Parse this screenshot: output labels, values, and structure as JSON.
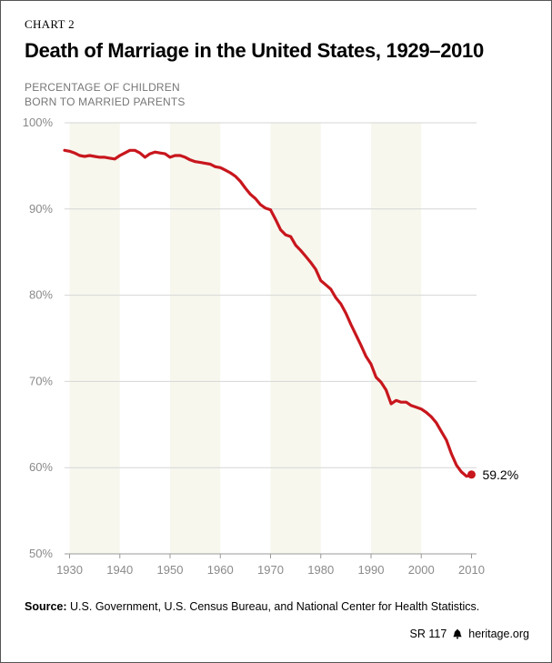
{
  "header": {
    "kicker": "CHART 2",
    "title": "Death of Marriage in the United States, 1929–2010",
    "ylabel_line1": "PERCENTAGE OF CHILDREN",
    "ylabel_line2": "BORN TO MARRIED PARENTS"
  },
  "chart_data": {
    "type": "line",
    "title": "Death of Marriage in the United States, 1929–2010",
    "xlabel": "",
    "ylabel": "PERCENTAGE OF CHILDREN BORN TO MARRIED PARENTS",
    "xlim": [
      1929,
      2011
    ],
    "ylim": [
      50,
      100
    ],
    "x_ticks": [
      1930,
      1940,
      1950,
      1960,
      1970,
      1980,
      1990,
      2000,
      2010
    ],
    "x_tick_labels": [
      "1930",
      "1940",
      "1950",
      "1960",
      "1970",
      "1980",
      "1990",
      "2000",
      "2010"
    ],
    "y_ticks": [
      50,
      60,
      70,
      80,
      90,
      100
    ],
    "y_tick_labels": [
      "50%",
      "60%",
      "70%",
      "80%",
      "90%",
      "100%"
    ],
    "shaded_decades": [
      [
        1930,
        1940
      ],
      [
        1950,
        1960
      ],
      [
        1970,
        1980
      ],
      [
        1990,
        2000
      ]
    ],
    "shade_color": "#f7f7ee",
    "series": [
      {
        "name": "Percentage of children born to married parents",
        "color": "#c8161d",
        "x": [
          1929,
          1930,
          1931,
          1932,
          1933,
          1934,
          1935,
          1936,
          1937,
          1938,
          1939,
          1940,
          1941,
          1942,
          1943,
          1944,
          1945,
          1946,
          1947,
          1948,
          1949,
          1950,
          1951,
          1952,
          1953,
          1954,
          1955,
          1956,
          1957,
          1958,
          1959,
          1960,
          1961,
          1962,
          1963,
          1964,
          1965,
          1966,
          1967,
          1968,
          1969,
          1970,
          1971,
          1972,
          1973,
          1974,
          1975,
          1976,
          1977,
          1978,
          1979,
          1980,
          1981,
          1982,
          1983,
          1984,
          1985,
          1986,
          1987,
          1988,
          1989,
          1990,
          1991,
          1992,
          1993,
          1994,
          1995,
          1996,
          1997,
          1998,
          1999,
          2000,
          2001,
          2002,
          2003,
          2004,
          2005,
          2006,
          2007,
          2008,
          2009,
          2010
        ],
        "values": [
          96.8,
          96.7,
          96.5,
          96.2,
          96.1,
          96.2,
          96.1,
          96.0,
          96.0,
          95.9,
          95.8,
          96.2,
          96.5,
          96.8,
          96.8,
          96.5,
          96.0,
          96.4,
          96.6,
          96.5,
          96.4,
          96.0,
          96.2,
          96.2,
          96.0,
          95.7,
          95.5,
          95.4,
          95.3,
          95.2,
          94.9,
          94.8,
          94.5,
          94.2,
          93.8,
          93.2,
          92.4,
          91.7,
          91.2,
          90.5,
          90.1,
          89.9,
          88.8,
          87.6,
          87.0,
          86.8,
          85.8,
          85.2,
          84.5,
          83.8,
          83.0,
          81.7,
          81.2,
          80.7,
          79.7,
          79.0,
          77.9,
          76.6,
          75.4,
          74.2,
          72.9,
          72.0,
          70.5,
          69.9,
          69.0,
          67.4,
          67.8,
          67.6,
          67.6,
          67.2,
          67.0,
          66.8,
          66.4,
          65.9,
          65.2,
          64.2,
          63.2,
          61.6,
          60.3,
          59.5,
          59.0,
          59.2
        ]
      }
    ],
    "end_label": "59.2%"
  },
  "footer": {
    "source_label": "Source:",
    "source_text": "U.S. Government, U.S. Census Bureau, and National Center for Health Statistics.",
    "report_id": "SR 117",
    "site": "heritage.org"
  }
}
